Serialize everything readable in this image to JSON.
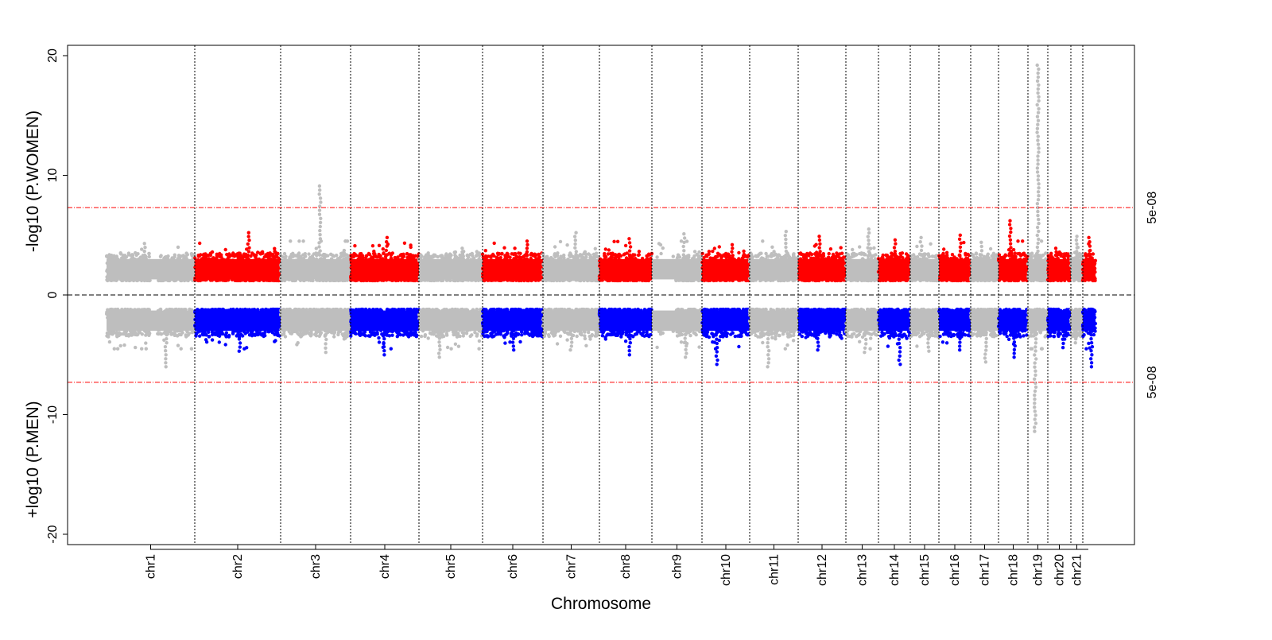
{
  "chart_data": {
    "type": "scatter",
    "subtype": "miami-plot",
    "xlabel": "Chromosome",
    "ylabel_top": "-log10 (P.WOMEN)",
    "ylabel_bottom": "+log10 (P.MEN)",
    "ylim": [
      -21,
      21
    ],
    "yticks": [
      {
        "value": 20,
        "label": "20"
      },
      {
        "value": 10,
        "label": "10"
      },
      {
        "value": 0,
        "label": "0"
      },
      {
        "value": -10,
        "label": "-10"
      },
      {
        "value": -20,
        "label": "-20"
      }
    ],
    "threshold": {
      "value": 7.3,
      "label": "5e-08",
      "color": "#ff0000"
    },
    "grid": false,
    "colors": {
      "women_highlight": "#ff0000",
      "men_highlight": "#0000ff",
      "other": "#bebebe",
      "separator": "#000000"
    },
    "chromosomes": [
      {
        "name": "chr1",
        "highlight": false,
        "peak_women": 4.3,
        "peak_men": 6.0
      },
      {
        "name": "chr2",
        "highlight": true,
        "peak_women": 5.2,
        "peak_men": 4.7
      },
      {
        "name": "chr3",
        "highlight": false,
        "peak_women": 9.1,
        "peak_men": 4.8
      },
      {
        "name": "chr4",
        "highlight": true,
        "peak_women": 4.8,
        "peak_men": 5.0
      },
      {
        "name": "chr5",
        "highlight": false,
        "peak_women": 3.9,
        "peak_men": 5.2
      },
      {
        "name": "chr6",
        "highlight": true,
        "peak_women": 4.5,
        "peak_men": 4.6
      },
      {
        "name": "chr7",
        "highlight": false,
        "peak_women": 5.2,
        "peak_men": 4.6
      },
      {
        "name": "chr8",
        "highlight": true,
        "peak_women": 4.7,
        "peak_men": 5.0
      },
      {
        "name": "chr9",
        "highlight": false,
        "peak_women": 5.1,
        "peak_men": 5.2
      },
      {
        "name": "chr10",
        "highlight": true,
        "peak_women": 4.2,
        "peak_men": 5.8
      },
      {
        "name": "chr11",
        "highlight": false,
        "peak_women": 5.3,
        "peak_men": 6.0
      },
      {
        "name": "chr12",
        "highlight": true,
        "peak_women": 4.9,
        "peak_men": 4.6
      },
      {
        "name": "chr13",
        "highlight": false,
        "peak_women": 5.5,
        "peak_men": 4.8
      },
      {
        "name": "chr14",
        "highlight": true,
        "peak_women": 4.6,
        "peak_men": 5.8
      },
      {
        "name": "chr15",
        "highlight": false,
        "peak_women": 4.8,
        "peak_men": 4.7
      },
      {
        "name": "chr16",
        "highlight": true,
        "peak_women": 5.0,
        "peak_men": 4.6
      },
      {
        "name": "chr17",
        "highlight": false,
        "peak_women": 4.4,
        "peak_men": 5.6
      },
      {
        "name": "chr18",
        "highlight": true,
        "peak_women": 6.2,
        "peak_men": 5.2
      },
      {
        "name": "chr19",
        "highlight": false,
        "peak_women": 19.2,
        "peak_men": 11.4
      },
      {
        "name": "chr20",
        "highlight": true,
        "peak_women": 3.9,
        "peak_men": 4.4
      },
      {
        "name": "chr21",
        "highlight": false,
        "peak_women": 4.9,
        "peak_men": 4.0
      },
      {
        "name": "",
        "highlight": true,
        "peak_women": 4.8,
        "peak_men": 6.0
      }
    ]
  }
}
